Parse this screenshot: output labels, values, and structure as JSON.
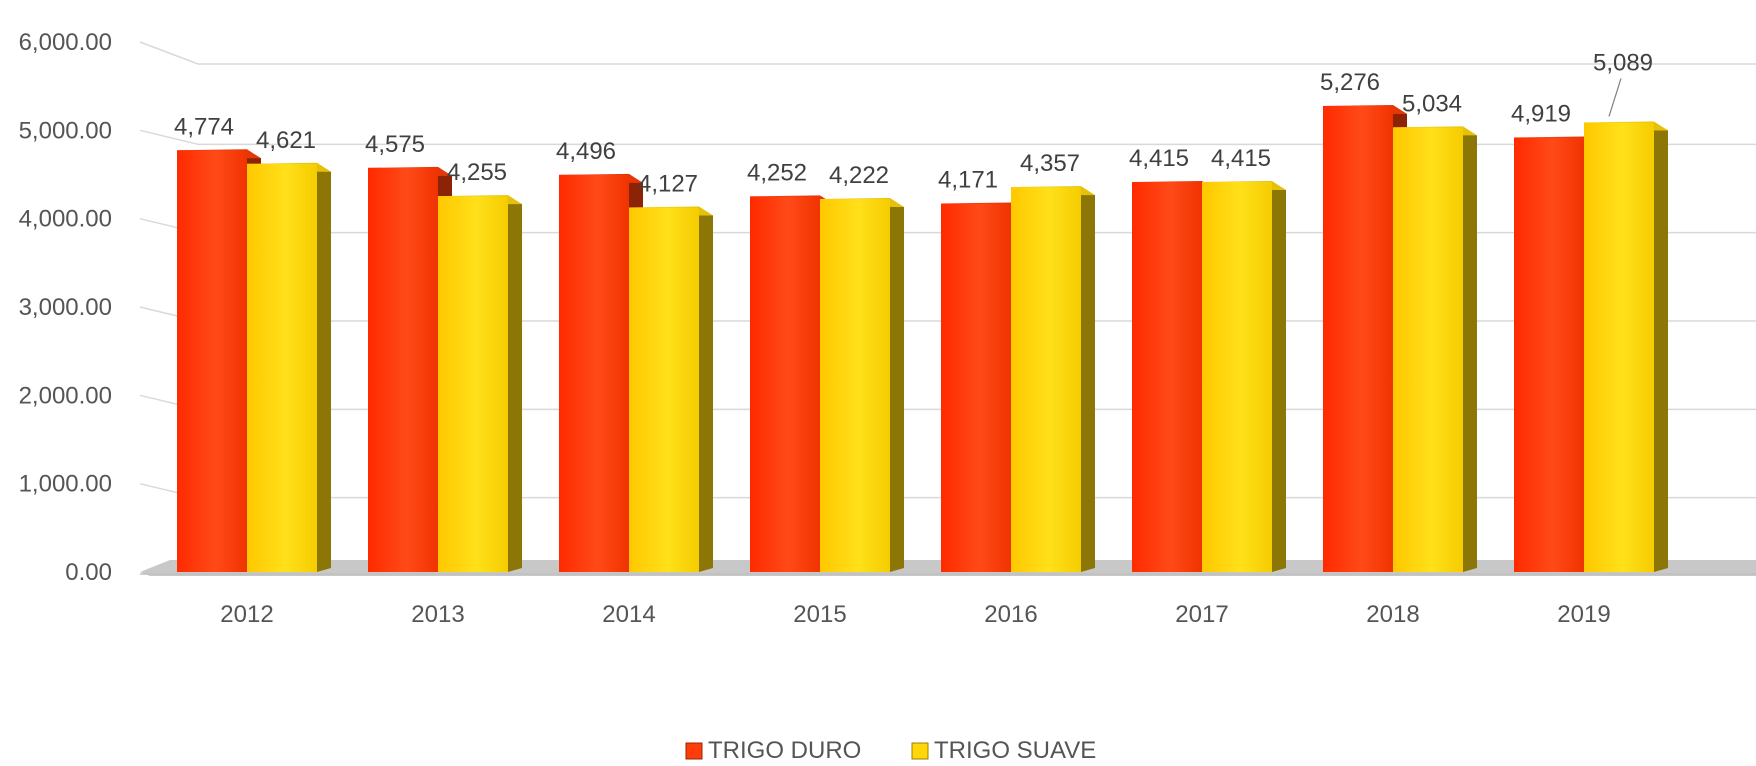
{
  "chart_data": {
    "type": "bar",
    "style": "3d-clustered-column",
    "categories": [
      "2012",
      "2013",
      "2014",
      "2015",
      "2016",
      "2017",
      "2018",
      "2019"
    ],
    "series": [
      {
        "name": "TRIGO DURO",
        "color": "#FF3D0A",
        "values": [
          4774,
          4575,
          4496,
          4252,
          4171,
          4415,
          5276,
          4919
        ],
        "labels": [
          "4,774",
          "4,575",
          "4,496",
          "4,252",
          "4,171",
          "4,415",
          "5,276",
          "4,919"
        ]
      },
      {
        "name": "TRIGO SUAVE",
        "color": "#FFD60A",
        "values": [
          4621,
          4255,
          4127,
          4222,
          4357,
          4415,
          5034,
          5089
        ],
        "labels": [
          "4,621",
          "4,255",
          "4,127",
          "4,222",
          "4,357",
          "4,415",
          "5,034",
          "5,089"
        ]
      }
    ],
    "yticks": [
      "0.00",
      "1,000.00",
      "2,000.00",
      "3,000.00",
      "4,000.00",
      "5,000.00",
      "6,000.00"
    ],
    "ylim": [
      0,
      6000
    ],
    "grid": true,
    "legend_position": "bottom",
    "title": "",
    "xlabel": "",
    "ylabel": ""
  }
}
